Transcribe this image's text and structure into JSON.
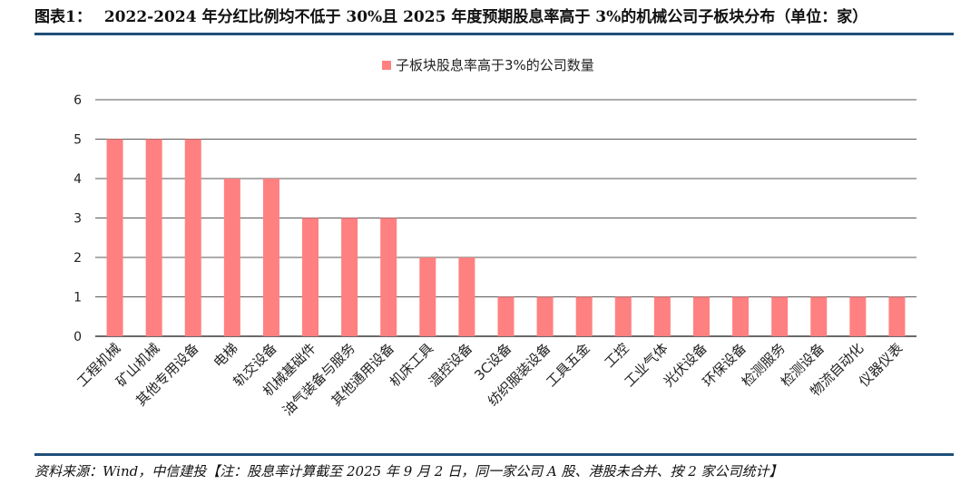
{
  "header": {
    "label": "图表1：",
    "title": "2022-2024 年分红比例均不低于 30%且 2025 年度预期股息率高于 3%的机械公司子板块分布（单位：家）"
  },
  "footer": {
    "source": "资料来源：Wind，中信建投【注：股息率计算截至 2025 年 9 月 2 日，同一家公司 A 股、港股未合并、按 2 家公司统计】"
  },
  "chart_data": {
    "type": "bar",
    "categories": [
      "工程机械",
      "矿山机械",
      "其他专用设备",
      "电梯",
      "轨交设备",
      "机械基础件",
      "油气装备与服务",
      "其他通用设备",
      "机床工具",
      "温控设备",
      "3C设备",
      "纺织服装设备",
      "工具五金",
      "工控",
      "工业气体",
      "光伏设备",
      "环保设备",
      "检测服务",
      "检测设备",
      "物流自动化",
      "仪器仪表"
    ],
    "series": [
      {
        "name": "子板块股息率高于3%的公司数量",
        "values": [
          5,
          5,
          5,
          4,
          4,
          3,
          3,
          3,
          2,
          2,
          1,
          1,
          1,
          1,
          1,
          1,
          1,
          1,
          1,
          1,
          1
        ]
      }
    ],
    "ylim": [
      0,
      6
    ],
    "yticks": [
      "0",
      "1",
      "2",
      "3",
      "4",
      "5",
      "6"
    ],
    "grid": true,
    "legend": "top-center",
    "bar_color": "#ff8080",
    "grid_color": "#222222"
  }
}
